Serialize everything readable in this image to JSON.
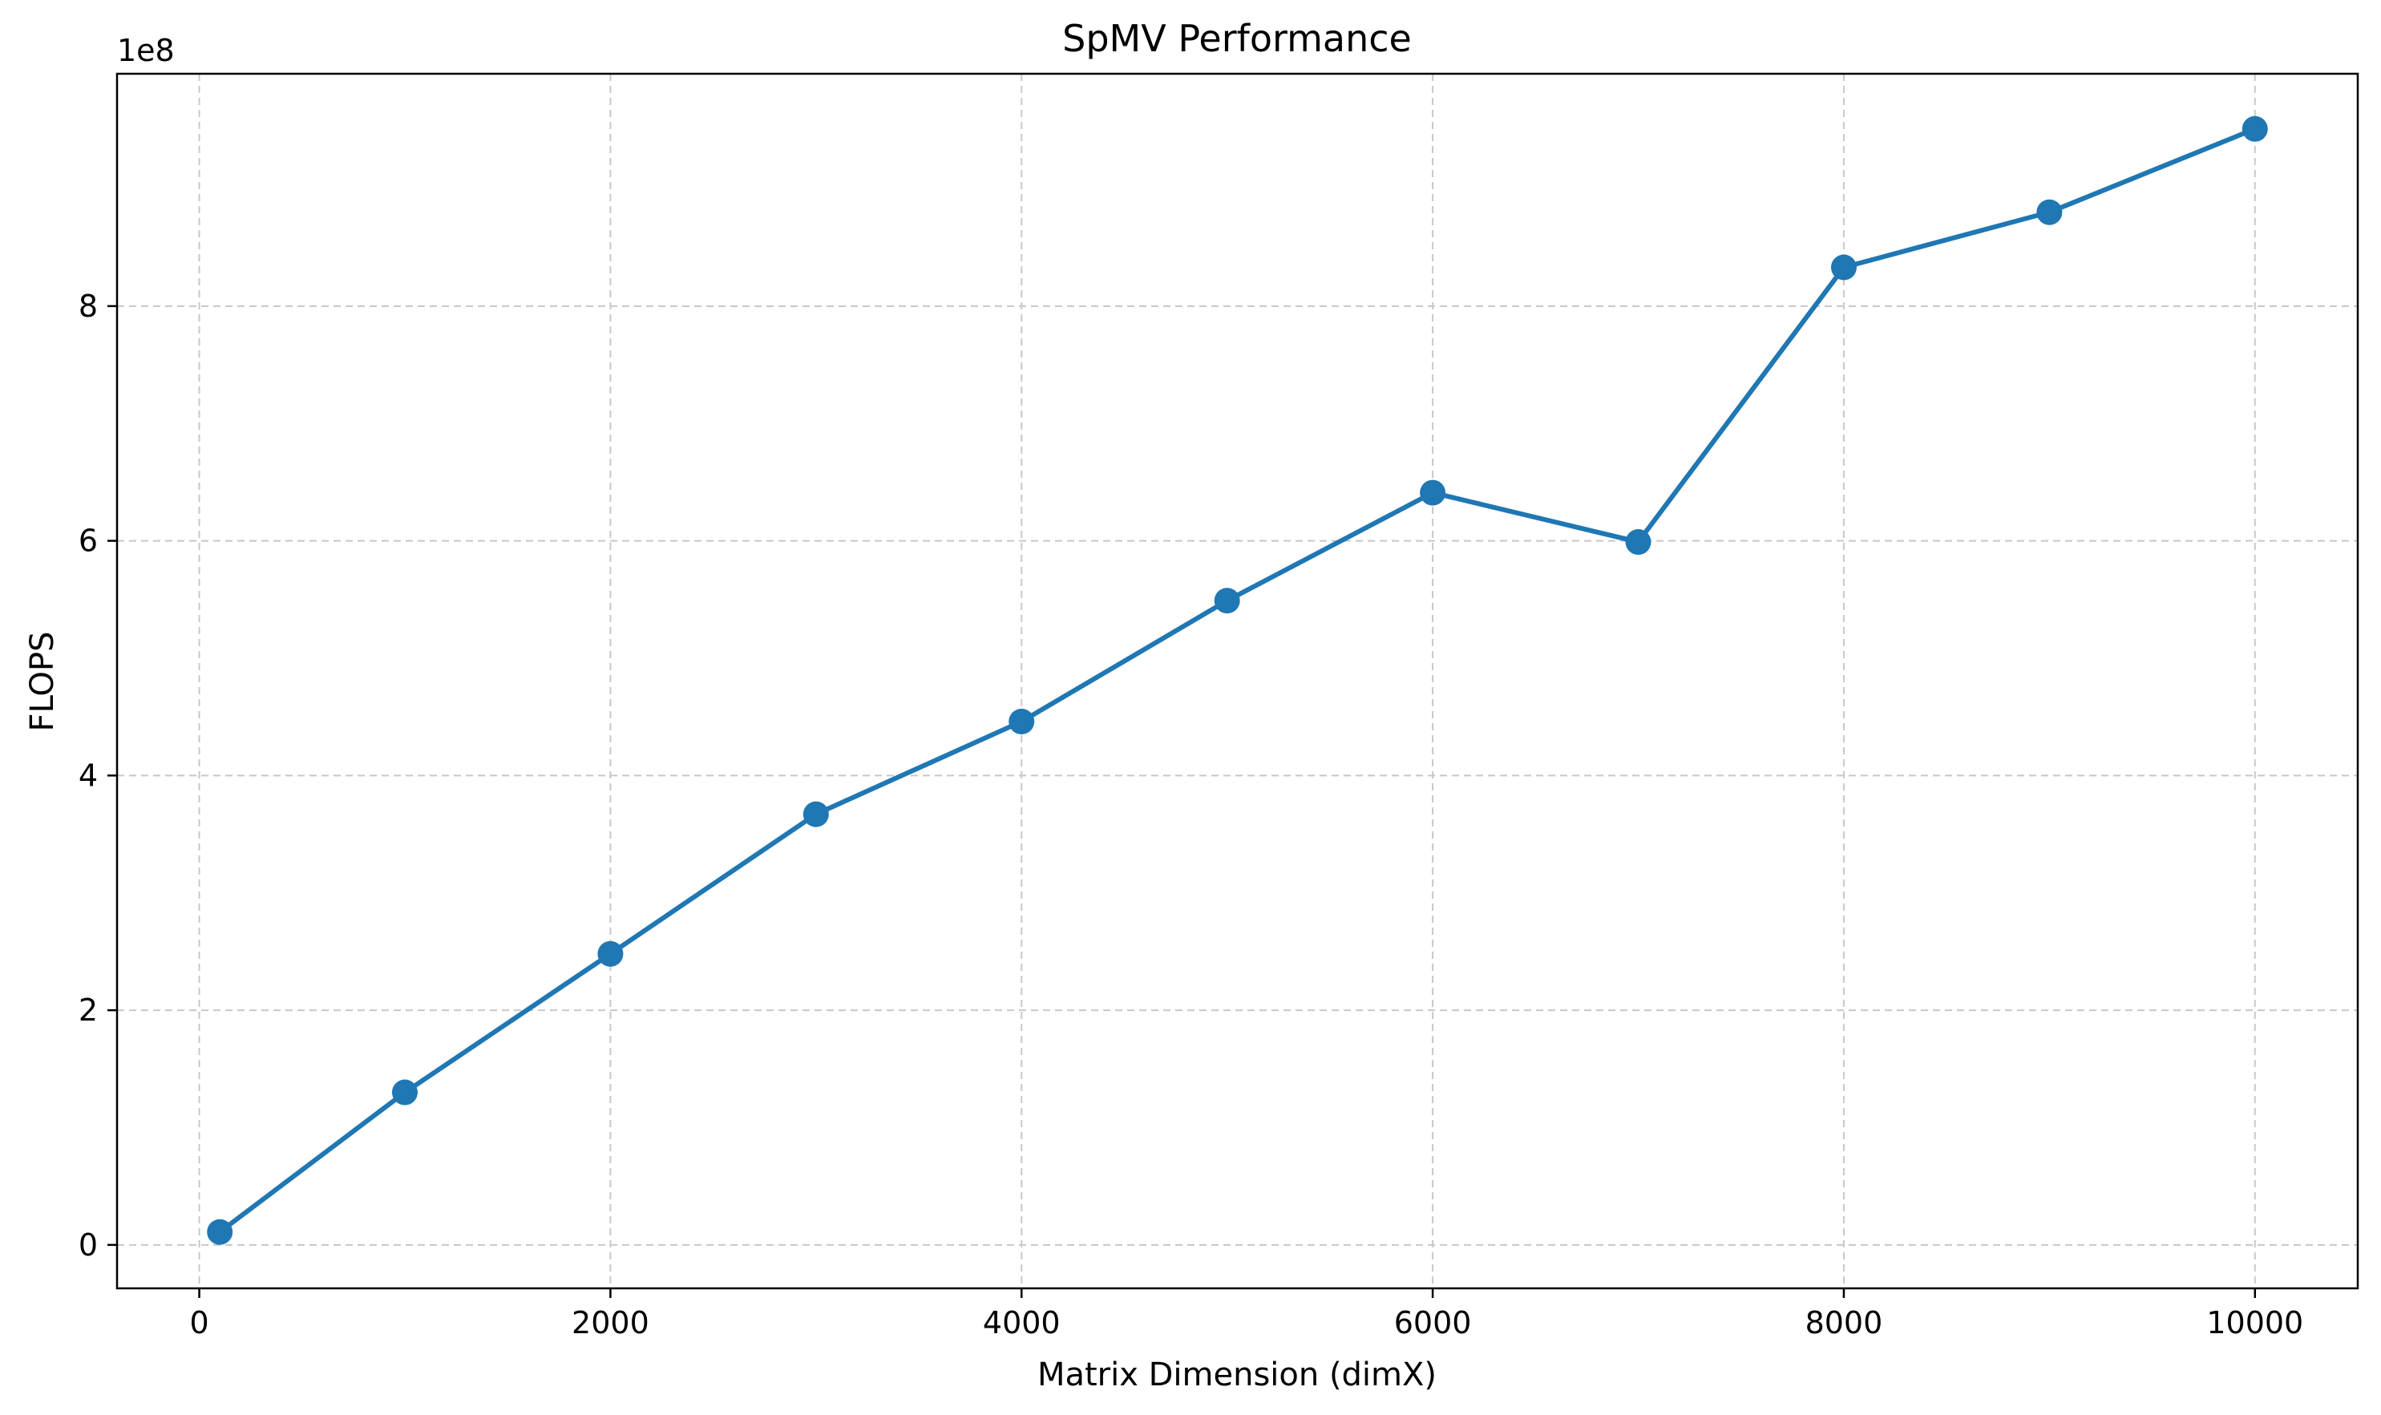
{
  "chart_data": {
    "type": "line",
    "title": "SpMV Performance",
    "xlabel": "Matrix Dimension (dimX)",
    "ylabel": "FLOPS",
    "y_offset_label": "1e8",
    "y_scale": 100000000,
    "xlim": [
      -400,
      10500
    ],
    "ylim": [
      -37000000,
      998000000
    ],
    "x_ticks": [
      0,
      2000,
      4000,
      6000,
      8000,
      10000
    ],
    "x_tick_labels": [
      "0",
      "2000",
      "4000",
      "6000",
      "8000",
      "10000"
    ],
    "y_ticks": [
      0,
      200000000,
      400000000,
      600000000,
      800000000
    ],
    "y_tick_labels": [
      "0",
      "2",
      "4",
      "6",
      "8"
    ],
    "grid": true,
    "grid_style": "dashed",
    "color": "#1f77b4",
    "marker": "circle",
    "series": [
      {
        "x": [
          100,
          1000,
          2000,
          3000,
          4000,
          5000,
          6000,
          7000,
          8000,
          9000,
          10000
        ],
        "values": [
          11000000,
          130000000,
          248000000,
          367000000,
          446000000,
          549000000,
          641000000,
          599000000,
          833000000,
          880000000,
          951000000
        ]
      }
    ]
  }
}
